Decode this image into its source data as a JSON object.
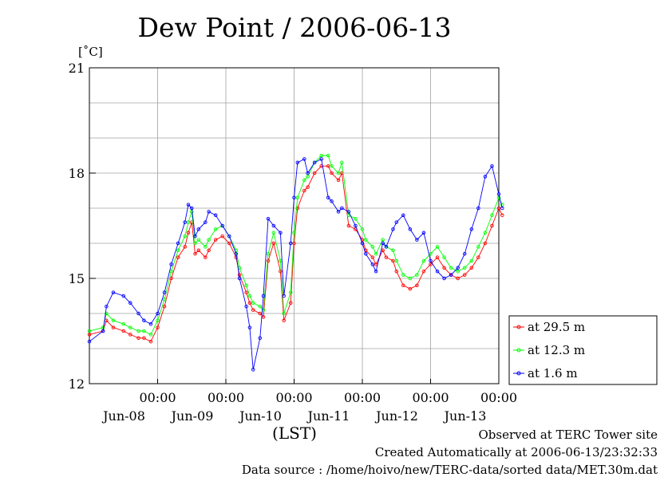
{
  "footer": {
    "observed": "Observed at TERC Tower site",
    "created": "Created Automatically at 2006-06-13/23:32:33",
    "source": "Data source : /home/hoivo/new/TERC-data/sorted data/MET.30m.dat"
  },
  "chart_data": {
    "type": "line",
    "title": "Dew Point / 2006-06-13",
    "ylabel": "[˚C]",
    "xlabel": "(LST)",
    "ylim": [
      12,
      21
    ],
    "yticks": [
      "12",
      "15",
      "18",
      "21"
    ],
    "y_minor_step": 1,
    "xlim": [
      0,
      6
    ],
    "x_units": "days since 2006-06-07 12:00 LST",
    "xticks": [
      {
        "x": 1,
        "time": "00:00",
        "date": "Jun-08"
      },
      {
        "x": 2,
        "time": "00:00",
        "date": "Jun-09"
      },
      {
        "x": 3,
        "time": "00:00",
        "date": "Jun-10"
      },
      {
        "x": 4,
        "time": "00:00",
        "date": "Jun-11"
      },
      {
        "x": 5,
        "time": "00:00",
        "date": "Jun-12"
      },
      {
        "x": 6,
        "time": "00:00",
        "date": "Jun-13"
      }
    ],
    "grid": true,
    "legend_position": "right-bottom-outside",
    "series": [
      {
        "name": "at 29.5 m",
        "color": "#ff0000",
        "x": [
          0,
          0.2,
          0.25,
          0.35,
          0.5,
          0.6,
          0.72,
          0.8,
          0.9,
          1.0,
          1.1,
          1.2,
          1.3,
          1.4,
          1.45,
          1.5,
          1.55,
          1.6,
          1.7,
          1.75,
          1.85,
          1.95,
          2.05,
          2.15,
          2.2,
          2.3,
          2.35,
          2.4,
          2.5,
          2.55,
          2.62,
          2.7,
          2.8,
          2.85,
          2.95,
          3.0,
          3.05,
          3.15,
          3.2,
          3.3,
          3.4,
          3.5,
          3.55,
          3.65,
          3.7,
          3.8,
          3.9,
          4.0,
          4.05,
          4.15,
          4.2,
          4.3,
          4.35,
          4.45,
          4.5,
          4.6,
          4.7,
          4.8,
          4.9,
          5.0,
          5.1,
          5.2,
          5.3,
          5.4,
          5.5,
          5.6,
          5.7,
          5.8,
          5.9,
          6.0,
          6.05
        ],
        "values": [
          13.4,
          13.5,
          13.8,
          13.6,
          13.5,
          13.4,
          13.3,
          13.3,
          13.2,
          13.6,
          14.2,
          15.0,
          15.6,
          15.9,
          16.3,
          16.6,
          15.7,
          15.8,
          15.6,
          15.8,
          16.1,
          16.2,
          16.0,
          15.6,
          15.1,
          14.6,
          14.3,
          14.1,
          14.0,
          13.9,
          15.5,
          16.0,
          15.2,
          13.8,
          14.3,
          16.0,
          17.0,
          17.5,
          17.6,
          18.0,
          18.2,
          18.2,
          18.0,
          17.8,
          18.0,
          16.5,
          16.4,
          16.1,
          15.8,
          15.6,
          15.4,
          15.8,
          15.6,
          15.5,
          15.2,
          14.8,
          14.7,
          14.8,
          15.2,
          15.4,
          15.6,
          15.3,
          15.1,
          15.0,
          15.1,
          15.3,
          15.6,
          16.0,
          16.5,
          17.0,
          16.8
        ]
      },
      {
        "name": "at 12.3 m",
        "color": "#00ff00",
        "x": [
          0,
          0.2,
          0.25,
          0.35,
          0.5,
          0.6,
          0.72,
          0.8,
          0.9,
          1.0,
          1.1,
          1.2,
          1.3,
          1.4,
          1.45,
          1.5,
          1.55,
          1.6,
          1.7,
          1.75,
          1.85,
          1.95,
          2.05,
          2.15,
          2.2,
          2.3,
          2.35,
          2.4,
          2.5,
          2.55,
          2.62,
          2.7,
          2.8,
          2.85,
          2.95,
          3.0,
          3.05,
          3.15,
          3.2,
          3.3,
          3.4,
          3.5,
          3.55,
          3.65,
          3.7,
          3.8,
          3.9,
          4.0,
          4.05,
          4.15,
          4.2,
          4.3,
          4.35,
          4.45,
          4.5,
          4.6,
          4.7,
          4.8,
          4.9,
          5.0,
          5.1,
          5.2,
          5.3,
          5.4,
          5.5,
          5.6,
          5.7,
          5.8,
          5.9,
          6.0,
          6.05
        ],
        "values": [
          13.5,
          13.6,
          14.0,
          13.8,
          13.7,
          13.6,
          13.5,
          13.5,
          13.4,
          13.8,
          14.4,
          15.2,
          15.8,
          16.2,
          16.6,
          16.9,
          16.0,
          16.1,
          15.9,
          16.1,
          16.4,
          16.5,
          16.2,
          15.8,
          15.3,
          14.8,
          14.5,
          14.3,
          14.2,
          14.1,
          15.7,
          16.3,
          15.5,
          14.0,
          14.6,
          16.3,
          17.3,
          17.8,
          17.9,
          18.3,
          18.5,
          18.5,
          18.2,
          18.0,
          18.3,
          16.8,
          16.7,
          16.4,
          16.1,
          15.9,
          15.7,
          16.1,
          15.9,
          15.8,
          15.5,
          15.1,
          15.0,
          15.1,
          15.5,
          15.7,
          15.9,
          15.6,
          15.3,
          15.2,
          15.3,
          15.5,
          15.9,
          16.3,
          16.8,
          17.3,
          17.1
        ]
      },
      {
        "name": "at 1.6 m",
        "color": "#0000ff",
        "x": [
          0,
          0.2,
          0.25,
          0.35,
          0.5,
          0.6,
          0.72,
          0.8,
          0.9,
          1.0,
          1.1,
          1.2,
          1.3,
          1.4,
          1.45,
          1.5,
          1.55,
          1.6,
          1.7,
          1.75,
          1.85,
          1.95,
          2.05,
          2.15,
          2.2,
          2.3,
          2.35,
          2.4,
          2.5,
          2.55,
          2.62,
          2.7,
          2.8,
          2.85,
          2.95,
          3.0,
          3.05,
          3.15,
          3.2,
          3.3,
          3.4,
          3.5,
          3.55,
          3.65,
          3.7,
          3.8,
          3.9,
          4.0,
          4.05,
          4.15,
          4.2,
          4.3,
          4.35,
          4.45,
          4.5,
          4.6,
          4.7,
          4.8,
          4.9,
          5.0,
          5.1,
          5.2,
          5.3,
          5.4,
          5.5,
          5.6,
          5.7,
          5.8,
          5.9,
          6.0,
          6.05
        ],
        "values": [
          13.2,
          13.5,
          14.2,
          14.6,
          14.5,
          14.3,
          14.0,
          13.8,
          13.7,
          14.0,
          14.6,
          15.4,
          16.0,
          16.6,
          17.1,
          17.0,
          16.2,
          16.4,
          16.6,
          16.9,
          16.8,
          16.5,
          16.2,
          15.7,
          15.0,
          14.2,
          13.6,
          12.4,
          13.3,
          14.5,
          16.7,
          16.5,
          16.3,
          14.5,
          16.0,
          17.3,
          18.3,
          18.4,
          18.0,
          18.3,
          18.4,
          17.3,
          17.2,
          16.9,
          17.0,
          16.9,
          16.5,
          16.0,
          15.7,
          15.4,
          15.2,
          16.0,
          15.9,
          16.4,
          16.6,
          16.8,
          16.4,
          16.1,
          16.3,
          15.5,
          15.2,
          15.0,
          15.1,
          15.3,
          15.7,
          16.4,
          17.0,
          17.9,
          18.2,
          17.4,
          17.0
        ]
      }
    ]
  }
}
